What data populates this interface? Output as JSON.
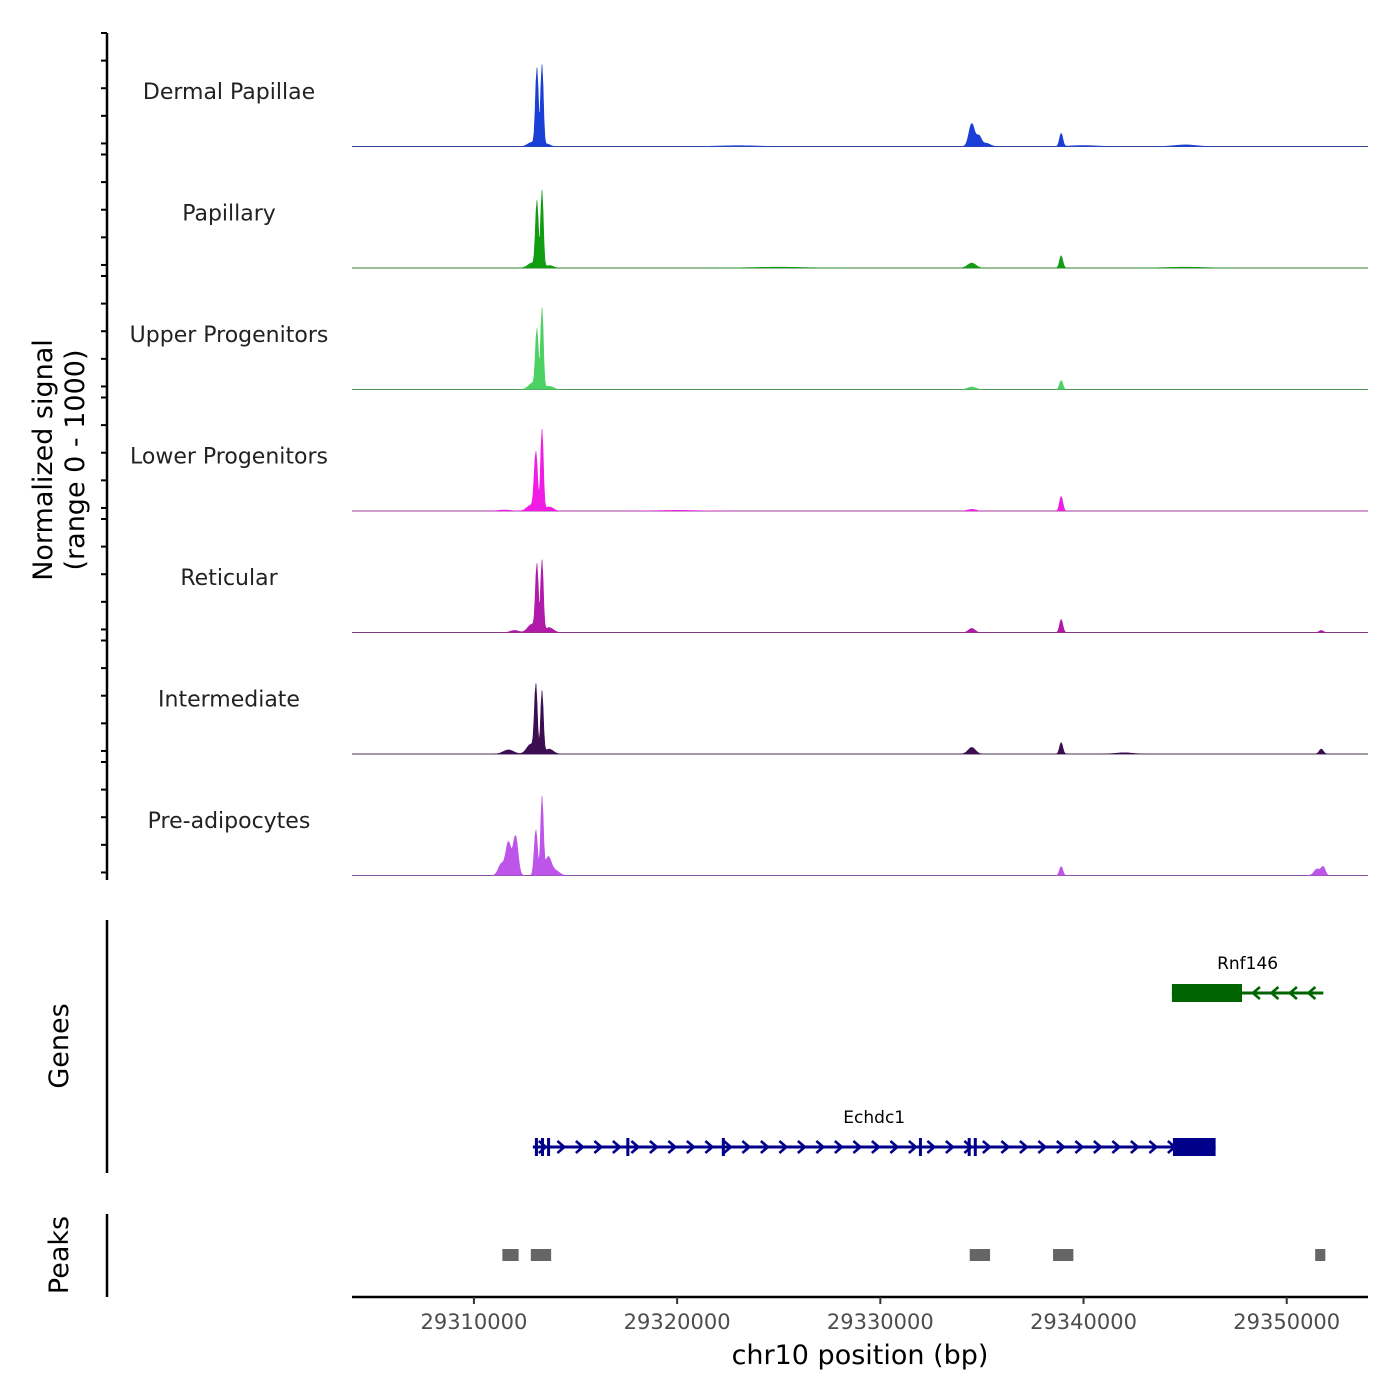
{
  "chart_data": {
    "type": "area",
    "title": "",
    "xlabel": "chr10 position (bp)",
    "ylabel_line1": "Normalized signal",
    "ylabel_line2": "(range 0 - 1000)",
    "genes_label": "Genes",
    "peaks_label": "Peaks",
    "xlim": [
      29304000,
      29354000
    ],
    "ylim": [
      0,
      1000
    ],
    "x_ticks": [
      29310000,
      29320000,
      29330000,
      29340000,
      29350000
    ],
    "x_tick_labels": [
      "29310000",
      "29320000",
      "29330000",
      "29340000",
      "29350000"
    ],
    "series": [
      {
        "name": "Dermal Papillae",
        "color": "#1a3fd6",
        "peaks": [
          [
            29313100,
            940,
            70
          ],
          [
            29313350,
            1000,
            65
          ],
          [
            29312850,
            50,
            200
          ],
          [
            29313600,
            30,
            150
          ],
          [
            29334500,
            280,
            140
          ],
          [
            29334850,
            120,
            120
          ],
          [
            29335200,
            40,
            200
          ],
          [
            29338900,
            160,
            80
          ],
          [
            29345000,
            20,
            500
          ],
          [
            29340000,
            12,
            600
          ],
          [
            29323000,
            10,
            900
          ]
        ]
      },
      {
        "name": "Papillary",
        "color": "#129c12",
        "peaks": [
          [
            29313100,
            800,
            70
          ],
          [
            29313350,
            940,
            65
          ],
          [
            29312850,
            60,
            200
          ],
          [
            29313700,
            30,
            200
          ],
          [
            29334500,
            60,
            200
          ],
          [
            29338900,
            150,
            80
          ],
          [
            29325000,
            10,
            1200
          ],
          [
            29345000,
            10,
            900
          ]
        ]
      },
      {
        "name": "Upper Progenitors",
        "color": "#4cd262",
        "peaks": [
          [
            29313100,
            700,
            70
          ],
          [
            29313350,
            1000,
            65
          ],
          [
            29312900,
            80,
            200
          ],
          [
            29313700,
            40,
            200
          ],
          [
            29334500,
            30,
            200
          ],
          [
            29338900,
            110,
            80
          ]
        ]
      },
      {
        "name": "Lower Progenitors",
        "color": "#f01ce6",
        "peaks": [
          [
            29313050,
            700,
            80
          ],
          [
            29313350,
            1000,
            65
          ],
          [
            29312800,
            70,
            200
          ],
          [
            29313700,
            50,
            200
          ],
          [
            29338900,
            180,
            80
          ],
          [
            29334500,
            20,
            200
          ],
          [
            29311500,
            12,
            300
          ],
          [
            29320000,
            8,
            900
          ]
        ]
      },
      {
        "name": "Reticular",
        "color": "#b01aa8",
        "peaks": [
          [
            29313100,
            800,
            70
          ],
          [
            29313350,
            870,
            65
          ],
          [
            29312850,
            100,
            200
          ],
          [
            29313700,
            60,
            200
          ],
          [
            29312000,
            25,
            200
          ],
          [
            29334500,
            50,
            150
          ],
          [
            29338900,
            160,
            80
          ],
          [
            29351700,
            25,
            100
          ]
        ]
      },
      {
        "name": "Intermediate",
        "color": "#3d0d52",
        "peaks": [
          [
            29313050,
            810,
            70
          ],
          [
            29313350,
            760,
            65
          ],
          [
            29312800,
            120,
            200
          ],
          [
            29313700,
            60,
            200
          ],
          [
            29311700,
            50,
            250
          ],
          [
            29334500,
            80,
            180
          ],
          [
            29338900,
            140,
            80
          ],
          [
            29342000,
            15,
            400
          ],
          [
            29351700,
            60,
            100
          ]
        ]
      },
      {
        "name": "Pre-adipocytes",
        "color": "#bd55ea",
        "peaks": [
          [
            29311700,
            400,
            130
          ],
          [
            29312050,
            480,
            120
          ],
          [
            29311350,
            140,
            150
          ],
          [
            29313050,
            560,
            80
          ],
          [
            29313350,
            940,
            65
          ],
          [
            29313650,
            220,
            150
          ],
          [
            29314000,
            60,
            200
          ],
          [
            29338900,
            110,
            80
          ],
          [
            29351500,
            80,
            150
          ],
          [
            29351800,
            100,
            100
          ]
        ]
      }
    ],
    "genes": [
      {
        "name": "Rnf146",
        "strand": "-",
        "color": "#006400",
        "start": 29344350,
        "end": 29351800,
        "thick": [
          [
            29344350,
            29347800
          ]
        ],
        "exons": [
          [
            29346000,
            29346150
          ]
        ]
      },
      {
        "name": "Echdc1",
        "strand": "+",
        "color": "#00008b",
        "start": 29312900,
        "end": 29346500,
        "thick": [
          [
            29344400,
            29346500
          ]
        ],
        "exons": [
          [
            29313000,
            29313150
          ],
          [
            29313300,
            29313450
          ],
          [
            29313600,
            29313700
          ],
          [
            29317500,
            29317650
          ],
          [
            29322200,
            29322350
          ],
          [
            29331900,
            29332000
          ],
          [
            29334300,
            29334400
          ],
          [
            29334600,
            29334700
          ]
        ]
      }
    ],
    "peaks": [
      [
        29311400,
        29312200
      ],
      [
        29312800,
        29313800
      ],
      [
        29334400,
        29335400
      ],
      [
        29338500,
        29339500
      ],
      [
        29351400,
        29351900
      ]
    ]
  }
}
